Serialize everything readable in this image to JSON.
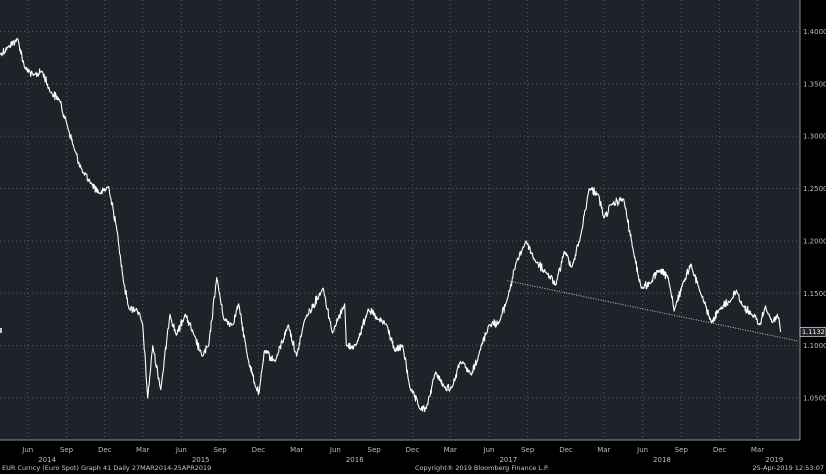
{
  "chart_data": {
    "type": "line",
    "title": "",
    "xlabel": "",
    "ylabel": "",
    "series": [
      {
        "values": [
          {
            "x": "2014-03-27",
            "y": 1.378
          },
          {
            "x": "2014-04-15",
            "y": 1.385
          },
          {
            "x": "2014-05-08",
            "y": 1.393
          },
          {
            "x": "2014-05-25",
            "y": 1.365
          },
          {
            "x": "2014-06-15",
            "y": 1.358
          },
          {
            "x": "2014-07-05",
            "y": 1.362
          },
          {
            "x": "2014-07-25",
            "y": 1.342
          },
          {
            "x": "2014-08-15",
            "y": 1.335
          },
          {
            "x": "2014-09-01",
            "y": 1.313
          },
          {
            "x": "2014-09-20",
            "y": 1.287
          },
          {
            "x": "2014-10-10",
            "y": 1.265
          },
          {
            "x": "2014-10-30",
            "y": 1.255
          },
          {
            "x": "2014-11-20",
            "y": 1.245
          },
          {
            "x": "2014-12-10",
            "y": 1.252
          },
          {
            "x": "2014-12-31",
            "y": 1.208
          },
          {
            "x": "2015-01-15",
            "y": 1.16
          },
          {
            "x": "2015-01-28",
            "y": 1.135
          },
          {
            "x": "2015-02-15",
            "y": 1.135
          },
          {
            "x": "2015-03-01",
            "y": 1.12
          },
          {
            "x": "2015-03-13",
            "y": 1.05
          },
          {
            "x": "2015-03-25",
            "y": 1.1
          },
          {
            "x": "2015-04-13",
            "y": 1.058
          },
          {
            "x": "2015-05-05",
            "y": 1.13
          },
          {
            "x": "2015-05-20",
            "y": 1.11
          },
          {
            "x": "2015-06-10",
            "y": 1.13
          },
          {
            "x": "2015-07-01",
            "y": 1.11
          },
          {
            "x": "2015-07-20",
            "y": 1.09
          },
          {
            "x": "2015-08-05",
            "y": 1.1
          },
          {
            "x": "2015-08-24",
            "y": 1.165
          },
          {
            "x": "2015-09-10",
            "y": 1.125
          },
          {
            "x": "2015-10-01",
            "y": 1.12
          },
          {
            "x": "2015-10-15",
            "y": 1.14
          },
          {
            "x": "2015-11-05",
            "y": 1.09
          },
          {
            "x": "2015-11-25",
            "y": 1.06
          },
          {
            "x": "2015-12-03",
            "y": 1.055
          },
          {
            "x": "2015-12-15",
            "y": 1.095
          },
          {
            "x": "2016-01-10",
            "y": 1.085
          },
          {
            "x": "2016-02-10",
            "y": 1.12
          },
          {
            "x": "2016-03-01",
            "y": 1.09
          },
          {
            "x": "2016-03-20",
            "y": 1.125
          },
          {
            "x": "2016-05-03",
            "y": 1.155
          },
          {
            "x": "2016-05-25",
            "y": 1.112
          },
          {
            "x": "2016-06-23",
            "y": 1.14
          },
          {
            "x": "2016-06-27",
            "y": 1.1
          },
          {
            "x": "2016-07-20",
            "y": 1.1
          },
          {
            "x": "2016-08-18",
            "y": 1.135
          },
          {
            "x": "2016-09-10",
            "y": 1.125
          },
          {
            "x": "2016-10-01",
            "y": 1.12
          },
          {
            "x": "2016-10-20",
            "y": 1.095
          },
          {
            "x": "2016-11-08",
            "y": 1.1
          },
          {
            "x": "2016-11-25",
            "y": 1.06
          },
          {
            "x": "2016-12-20",
            "y": 1.039
          },
          {
            "x": "2017-01-03",
            "y": 1.04
          },
          {
            "x": "2017-01-25",
            "y": 1.075
          },
          {
            "x": "2017-02-15",
            "y": 1.06
          },
          {
            "x": "2017-03-05",
            "y": 1.06
          },
          {
            "x": "2017-03-25",
            "y": 1.085
          },
          {
            "x": "2017-04-20",
            "y": 1.072
          },
          {
            "x": "2017-05-10",
            "y": 1.095
          },
          {
            "x": "2017-06-01",
            "y": 1.12
          },
          {
            "x": "2017-06-25",
            "y": 1.122
          },
          {
            "x": "2017-07-15",
            "y": 1.145
          },
          {
            "x": "2017-08-05",
            "y": 1.18
          },
          {
            "x": "2017-08-28",
            "y": 1.2
          },
          {
            "x": "2017-09-20",
            "y": 1.18
          },
          {
            "x": "2017-10-15",
            "y": 1.17
          },
          {
            "x": "2017-11-07",
            "y": 1.158
          },
          {
            "x": "2017-11-27",
            "y": 1.19
          },
          {
            "x": "2017-12-15",
            "y": 1.175
          },
          {
            "x": "2018-01-05",
            "y": 1.205
          },
          {
            "x": "2018-01-25",
            "y": 1.25
          },
          {
            "x": "2018-02-15",
            "y": 1.245
          },
          {
            "x": "2018-03-01",
            "y": 1.222
          },
          {
            "x": "2018-03-20",
            "y": 1.235
          },
          {
            "x": "2018-04-17",
            "y": 1.24
          },
          {
            "x": "2018-05-10",
            "y": 1.19
          },
          {
            "x": "2018-05-29",
            "y": 1.155
          },
          {
            "x": "2018-06-20",
            "y": 1.16
          },
          {
            "x": "2018-07-10",
            "y": 1.172
          },
          {
            "x": "2018-08-01",
            "y": 1.165
          },
          {
            "x": "2018-08-15",
            "y": 1.133
          },
          {
            "x": "2018-09-05",
            "y": 1.16
          },
          {
            "x": "2018-09-24",
            "y": 1.178
          },
          {
            "x": "2018-10-15",
            "y": 1.152
          },
          {
            "x": "2018-11-12",
            "y": 1.122
          },
          {
            "x": "2018-12-01",
            "y": 1.135
          },
          {
            "x": "2018-12-31",
            "y": 1.145
          },
          {
            "x": "2019-01-10",
            "y": 1.153
          },
          {
            "x": "2019-01-25",
            "y": 1.138
          },
          {
            "x": "2019-02-15",
            "y": 1.13
          },
          {
            "x": "2019-03-07",
            "y": 1.12
          },
          {
            "x": "2019-03-20",
            "y": 1.138
          },
          {
            "x": "2019-04-05",
            "y": 1.122
          },
          {
            "x": "2019-04-17",
            "y": 1.13
          },
          {
            "x": "2019-04-25",
            "y": 1.1132
          }
        ]
      }
    ],
    "trendline": {
      "start": {
        "x": "2017-07-15",
        "y": 1.162
      },
      "end": {
        "x": "2019-06-05",
        "y": 1.1045
      }
    },
    "ylim": [
      1.01,
      1.43
    ],
    "xlim": [
      "2014-03-27",
      "2019-06-10"
    ],
    "y_ticks": [
      "1.4000",
      "1.3500",
      "1.3000",
      "1.2500",
      "1.2000",
      "1.1500",
      "1.1000",
      "1.0500"
    ],
    "x_ticks": [
      {
        "label": "Jun",
        "date": "2014-06-01"
      },
      {
        "label": "Sep",
        "date": "2014-09-01"
      },
      {
        "label": "Dec",
        "date": "2014-12-01"
      },
      {
        "label": "Mar",
        "date": "2015-03-01"
      },
      {
        "label": "Jun",
        "date": "2015-06-01"
      },
      {
        "label": "Sep",
        "date": "2015-09-01"
      },
      {
        "label": "Dec",
        "date": "2015-12-01"
      },
      {
        "label": "Mar",
        "date": "2016-03-01"
      },
      {
        "label": "Jun",
        "date": "2016-06-01"
      },
      {
        "label": "Sep",
        "date": "2016-09-01"
      },
      {
        "label": "Dec",
        "date": "2016-12-01"
      },
      {
        "label": "Mar",
        "date": "2017-03-01"
      },
      {
        "label": "Jun",
        "date": "2017-06-01"
      },
      {
        "label": "Sep",
        "date": "2017-09-01"
      },
      {
        "label": "Dec",
        "date": "2017-12-01"
      },
      {
        "label": "Mar",
        "date": "2018-03-01"
      },
      {
        "label": "Jun",
        "date": "2018-06-01"
      },
      {
        "label": "Sep",
        "date": "2018-09-01"
      },
      {
        "label": "Dec",
        "date": "2018-12-01"
      },
      {
        "label": "Mar",
        "date": "2019-03-01"
      }
    ],
    "year_labels": [
      {
        "label": "2014",
        "date": "2014-07-17"
      },
      {
        "label": "2015",
        "date": "2015-07-17"
      },
      {
        "label": "2016",
        "date": "2016-07-17"
      },
      {
        "label": "2017",
        "date": "2017-07-17"
      },
      {
        "label": "2018",
        "date": "2018-07-17"
      },
      {
        "label": "2019",
        "date": "2019-04-10"
      }
    ],
    "last_value": "1.1132",
    "grid": true,
    "colors": {
      "background": "#000000",
      "plot": "#1e2229",
      "line": "#ffffff",
      "grid": "#5d636e",
      "text": "#b9bdc4"
    }
  },
  "footer": {
    "left": "EUR Curncy (Euro Spot) Graph 41  Daily 27MAR2014-25APR2019",
    "center": "Copyright® 2019 Bloomberg Finance L.P.",
    "right": "25-Apr-2019 12:53:07"
  }
}
